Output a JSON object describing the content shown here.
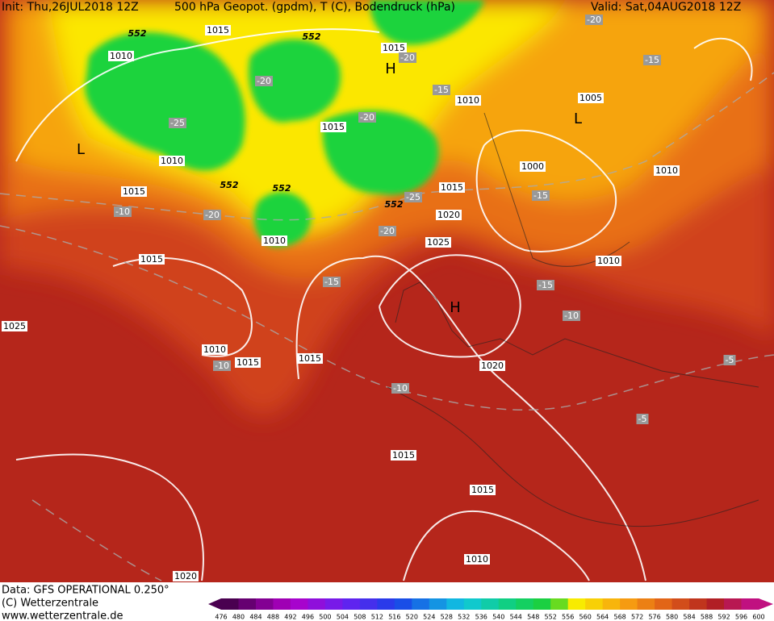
{
  "header": {
    "init": "Init: Thu,26JUL2018 12Z",
    "title": "500 hPa Geopot. (gpdm), T (C), Bodendruck (hPa)",
    "valid": "Valid: Sat,04AUG2018 12Z"
  },
  "map": {
    "pressure_labels": [
      1015,
      1010,
      1015,
      1010,
      1005,
      1015,
      1010,
      1000,
      1010,
      1015,
      1015,
      1020,
      1010,
      1025,
      1015,
      1010,
      1025,
      1010,
      1015,
      1015,
      1020,
      1015,
      1015,
      1010,
      1020
    ],
    "temperature_labels": [
      -20,
      -20,
      -15,
      -15,
      -20,
      -25,
      -20,
      -25,
      -15,
      -10,
      -20,
      -20,
      -15,
      -15,
      -10,
      -10,
      -10,
      -5,
      -5
    ],
    "height_labels": [
      552,
      552,
      552,
      552,
      552
    ],
    "centers": [
      "H",
      "L",
      "L",
      "H"
    ]
  },
  "footer": {
    "data": "Data: GFS OPERATIONAL 0.250°",
    "copyright": "(C) Wetterzentrale",
    "url": "www.wetterzentrale.de"
  },
  "colorbar": {
    "ticks": [
      476,
      480,
      484,
      488,
      492,
      496,
      500,
      504,
      508,
      512,
      516,
      520,
      524,
      528,
      532,
      536,
      540,
      544,
      548,
      552,
      556,
      560,
      564,
      568,
      572,
      576,
      580,
      584,
      588,
      592,
      596,
      600
    ]
  }
}
